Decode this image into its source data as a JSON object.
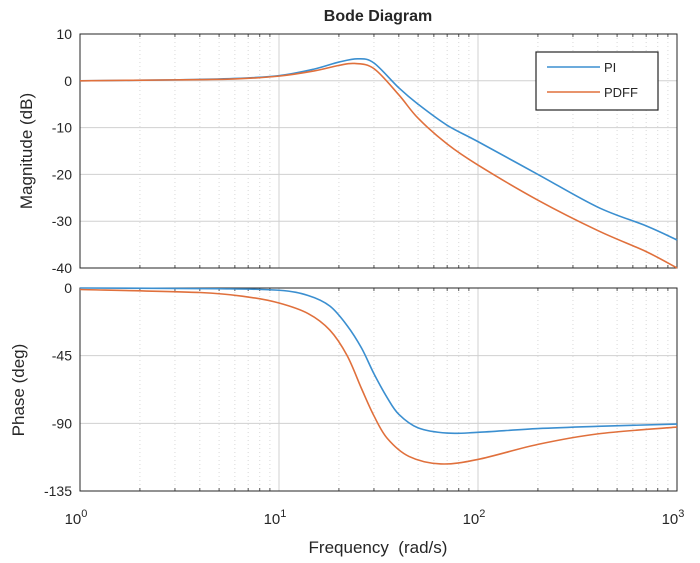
{
  "title": "Bode Diagram",
  "colors": {
    "PI": "#3b8fd0",
    "PDFF": "#e0703c"
  },
  "chart_data": [
    {
      "type": "line",
      "panel": "magnitude",
      "title": "Bode Diagram",
      "xlabel": "Frequency  (rad/s)",
      "ylabel": "Magnitude (dB)",
      "xscale": "log",
      "xlim": [
        1,
        1000
      ],
      "ylim": [
        -40,
        10
      ],
      "yticks": [
        "10",
        "0",
        "-10",
        "-20",
        "-30",
        "-40"
      ],
      "grid": true,
      "legend": "top-right",
      "series": [
        {
          "name": "PI",
          "x": [
            1,
            3,
            6,
            10,
            15,
            20,
            25,
            30,
            40,
            50,
            70,
            100,
            200,
            400,
            700,
            1000
          ],
          "values": [
            0,
            0.2,
            0.5,
            1.1,
            2.5,
            4.0,
            4.7,
            3.8,
            -1.5,
            -5,
            -9.5,
            -13,
            -20,
            -27,
            -31,
            -34
          ]
        },
        {
          "name": "PDFF",
          "x": [
            1,
            3,
            6,
            10,
            15,
            20,
            24,
            30,
            40,
            50,
            70,
            100,
            200,
            400,
            700,
            1000
          ],
          "values": [
            0,
            0.2,
            0.4,
            1.0,
            2.1,
            3.3,
            3.7,
            2.6,
            -3,
            -8,
            -13.5,
            -18,
            -25.5,
            -32,
            -36.5,
            -40
          ]
        }
      ]
    },
    {
      "type": "line",
      "panel": "phase",
      "xlabel": "Frequency  (rad/s)",
      "ylabel": "Phase (deg)",
      "xscale": "log",
      "xlim": [
        1,
        1000
      ],
      "ylim": [
        -135,
        0
      ],
      "yticks": [
        "0",
        "-45",
        "-90",
        "-135"
      ],
      "xticks": [
        "0",
        "1",
        "2",
        "3"
      ],
      "xtick_base": "10",
      "grid": true,
      "series": [
        {
          "name": "PI",
          "x": [
            1,
            5,
            10,
            14,
            18,
            22,
            26,
            30,
            35,
            40,
            50,
            70,
            100,
            200,
            400,
            1000
          ],
          "values": [
            0,
            -0.5,
            -1.5,
            -5,
            -12,
            -25,
            -40,
            -57,
            -73,
            -84,
            -93,
            -96.5,
            -96,
            -93.5,
            -92,
            -90.5
          ]
        },
        {
          "name": "PDFF",
          "x": [
            1,
            4,
            7,
            10,
            14,
            18,
            22,
            26,
            30,
            35,
            45,
            65,
            100,
            200,
            400,
            1000
          ],
          "values": [
            -1,
            -3,
            -6,
            -10,
            -17,
            -28,
            -45,
            -67,
            -85,
            -100,
            -112,
            -117,
            -114,
            -104,
            -97,
            -92.5
          ]
        }
      ]
    }
  ],
  "legend": [
    "PI",
    "PDFF"
  ]
}
